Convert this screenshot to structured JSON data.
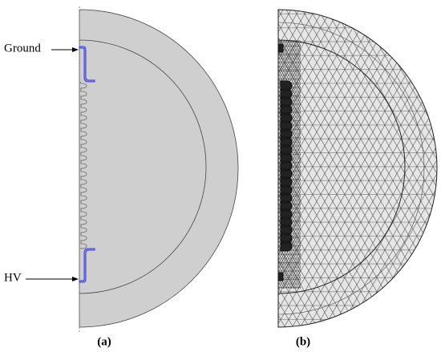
{
  "labels": {
    "ground": "Ground",
    "hv": "HV"
  },
  "captions": {
    "a": "(a)",
    "b": "(b)"
  }
}
